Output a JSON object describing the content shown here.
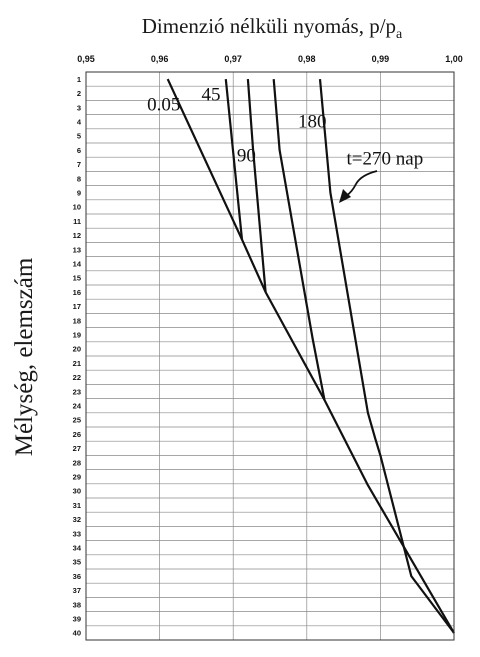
{
  "chart_data": {
    "type": "line",
    "title_main": "Dimenzió nélküli nyomás, p/p",
    "title_sub": "a",
    "ylabel": "Mélység,  elemszám",
    "x_ticks": [
      "0,95",
      "0,96",
      "0,97",
      "0,98",
      "0,99",
      "1,00"
    ],
    "x_tick_values": [
      0.95,
      0.96,
      0.97,
      0.98,
      0.99,
      1.0
    ],
    "xlim": [
      0.95,
      1.0
    ],
    "ylim": [
      1,
      40
    ],
    "y_ticks": [
      "1",
      "2",
      "3",
      "4",
      "5",
      "6",
      "7",
      "8",
      "9",
      "10",
      "11",
      "12",
      "13",
      "14",
      "15",
      "16",
      "17",
      "18",
      "19",
      "20",
      "21",
      "22",
      "23",
      "24",
      "25",
      "26",
      "27",
      "28",
      "29",
      "30",
      "31",
      "32",
      "33",
      "34",
      "35",
      "36",
      "37",
      "38",
      "39",
      "40"
    ],
    "y_tick_values": [
      1,
      2,
      3,
      4,
      5,
      6,
      7,
      8,
      9,
      10,
      11,
      12,
      13,
      14,
      15,
      16,
      17,
      18,
      19,
      20,
      21,
      22,
      23,
      24,
      25,
      26,
      27,
      28,
      29,
      30,
      31,
      32,
      33,
      34,
      35,
      36,
      37,
      38,
      39,
      40
    ],
    "grid": true,
    "series": [
      {
        "label": "0.05",
        "points": [
          [
            0.9611,
            1
          ],
          [
            0.9712,
            12.3
          ],
          [
            0.9744,
            16
          ],
          [
            0.9824,
            23.6
          ],
          [
            0.9883,
            29.6
          ],
          [
            1.0,
            40
          ]
        ]
      },
      {
        "label": "45",
        "points": [
          [
            0.969,
            1
          ],
          [
            0.9712,
            12.3
          ]
        ]
      },
      {
        "label": "90",
        "points": [
          [
            0.972,
            1
          ],
          [
            0.9727,
            6
          ],
          [
            0.9744,
            16
          ]
        ]
      },
      {
        "label": "180",
        "points": [
          [
            0.9755,
            1
          ],
          [
            0.9763,
            6
          ],
          [
            0.9808,
            19.3
          ],
          [
            0.9824,
            23.6
          ]
        ]
      },
      {
        "label": "t=270 nap",
        "points": [
          [
            0.9818,
            1
          ],
          [
            0.9832,
            9
          ],
          [
            0.9883,
            24.5
          ],
          [
            0.9893,
            26.3
          ],
          [
            0.99,
            27.5
          ],
          [
            0.9942,
            36
          ],
          [
            1.0,
            40
          ]
        ]
      }
    ],
    "annotations": [
      {
        "text": "0.05",
        "x": 0.9583,
        "y": 3.2
      },
      {
        "text": "45",
        "x": 0.9657,
        "y": 2.5
      },
      {
        "text": "180",
        "x": 0.9788,
        "y": 4.4
      },
      {
        "text": "90",
        "x": 0.9705,
        "y": 6.8
      },
      {
        "text": "t=270 nap",
        "x": 0.9854,
        "y": 7.0
      }
    ]
  }
}
